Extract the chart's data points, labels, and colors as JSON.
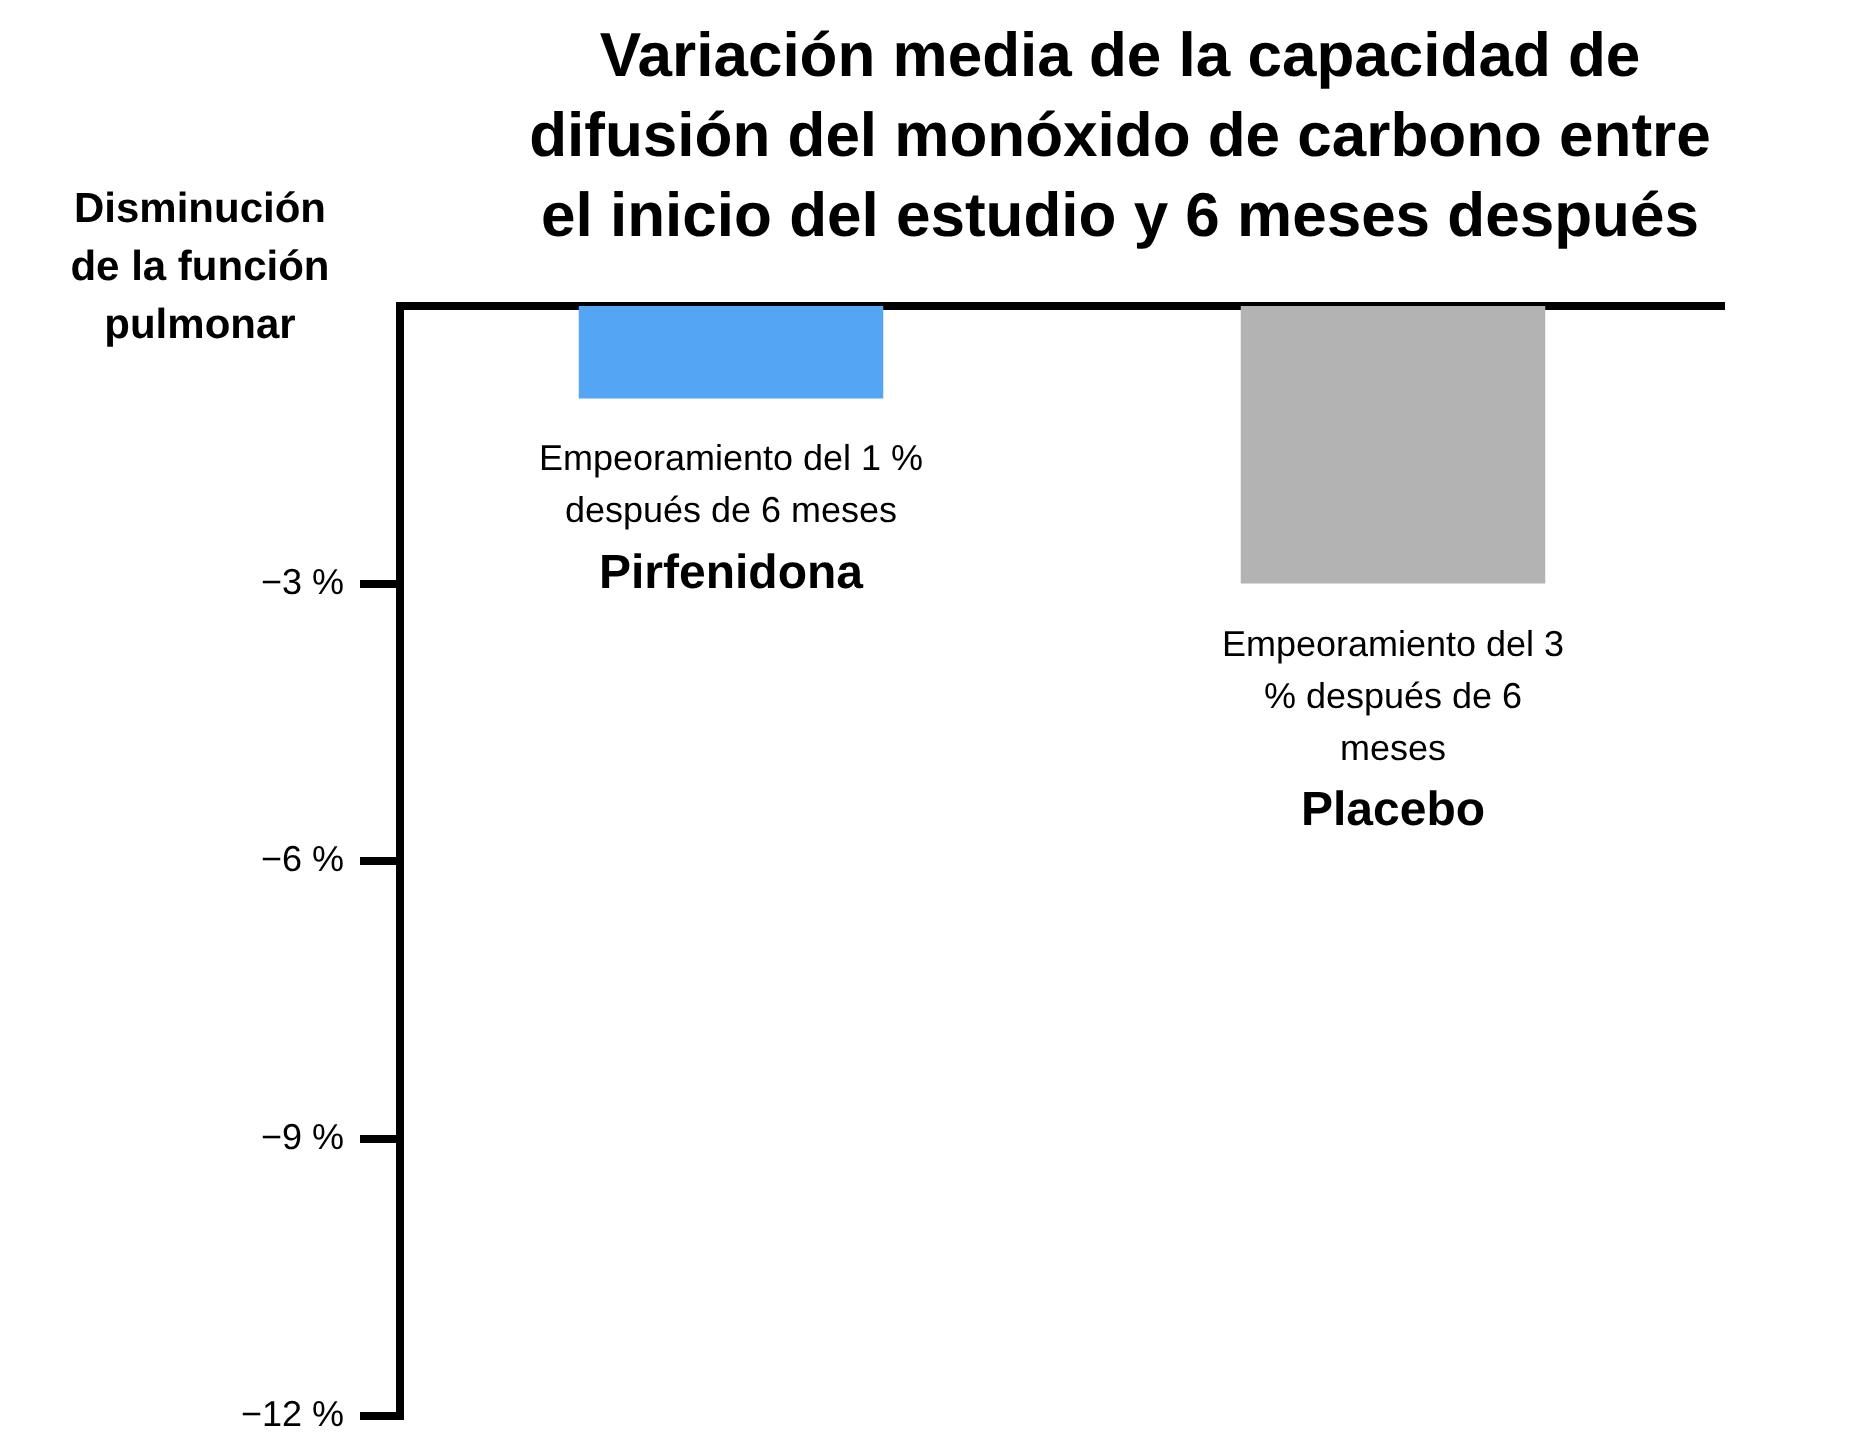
{
  "chart_data": {
    "type": "bar",
    "title": "Variación media de la capacidad de difusión del monóxido de carbono entre el inicio del estudio y 6 meses después",
    "ylabel": "Disminución de la función pulmonar",
    "categories": [
      "Pirfenidona",
      "Placebo"
    ],
    "values": [
      -1,
      -3
    ],
    "colors": [
      "#55a5f5",
      "#b3b3b3"
    ],
    "annotations": [
      {
        "text": "Empeoramiento del 1 % después de 6 meses",
        "x": "Pirfenidona",
        "y": -1
      },
      {
        "text": "Empeoramiento del 3 % después de 6 meses",
        "x": "Placebo",
        "y": -3
      }
    ],
    "ylim": [
      -12,
      0
    ],
    "yticks": [
      {
        "value": -3,
        "label": "−3 %"
      },
      {
        "value": -6,
        "label": "−6 %"
      },
      {
        "value": -9,
        "label": "−9 %"
      },
      {
        "value": -12,
        "label": "−12 %"
      }
    ],
    "grid": false,
    "legend": false
  }
}
